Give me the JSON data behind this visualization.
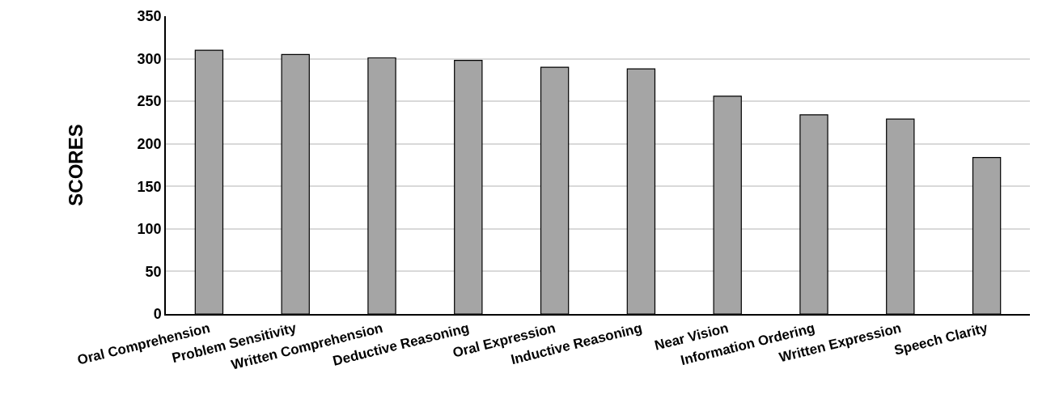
{
  "chart_data": {
    "type": "bar",
    "ylabel": "SCORES",
    "categories": [
      "Oral Comprehension",
      "Problem Sensitivity",
      "Written Comprehension",
      "Deductive Reasoning",
      "Oral Expression",
      "Inductive Reasoning",
      "Near Vision",
      "Information Ordering",
      "Written Expression",
      "Speech Clarity"
    ],
    "values": [
      310,
      305,
      301,
      298,
      290,
      288,
      256,
      234,
      229,
      184
    ],
    "color": "#a5a5a5",
    "ylim": [
      0,
      350
    ],
    "yticks": [
      0,
      50,
      100,
      150,
      200,
      250,
      300,
      350
    ],
    "grid": "y"
  }
}
